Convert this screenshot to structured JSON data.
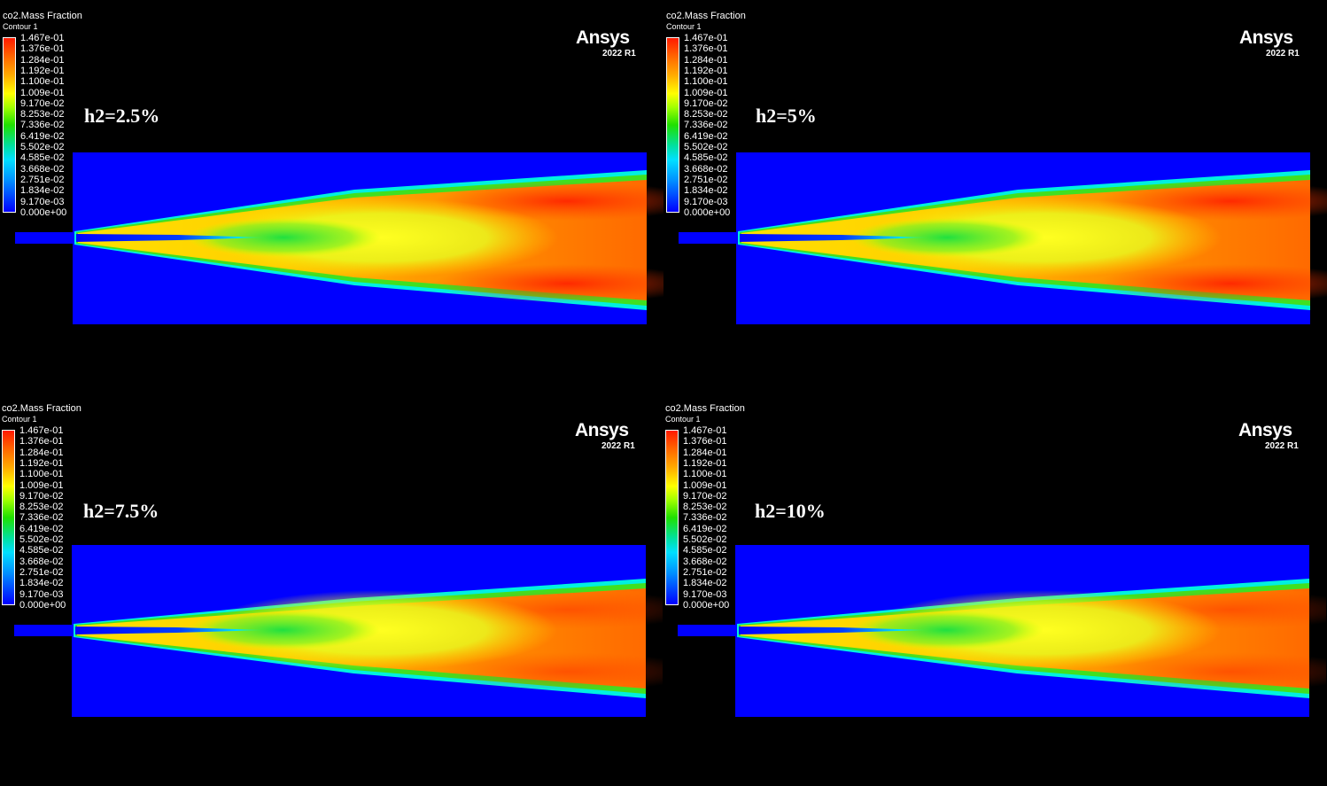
{
  "colorbar": {
    "title": "co2.Mass Fraction",
    "subtitle": "Contour 1",
    "levels": [
      "1.467e-01",
      "1.376e-01",
      "1.284e-01",
      "1.192e-01",
      "1.100e-01",
      "1.009e-01",
      "9.170e-02",
      "8.253e-02",
      "7.336e-02",
      "6.419e-02",
      "5.502e-02",
      "4.585e-02",
      "3.668e-02",
      "2.751e-02",
      "1.834e-02",
      "9.170e-03",
      "0.000e+00"
    ],
    "colors": {
      "max": "#ff1a00",
      "mid": "#ffff00",
      "low": "#00e0ff",
      "min": "#0000ff"
    }
  },
  "logo": {
    "brand": "Ansys",
    "version": "2022 R1"
  },
  "panels": [
    {
      "label": "h2=2.5%"
    },
    {
      "label": "h2=5%"
    },
    {
      "label": "h2=7.5%"
    },
    {
      "label": "h2=10%"
    }
  ]
}
